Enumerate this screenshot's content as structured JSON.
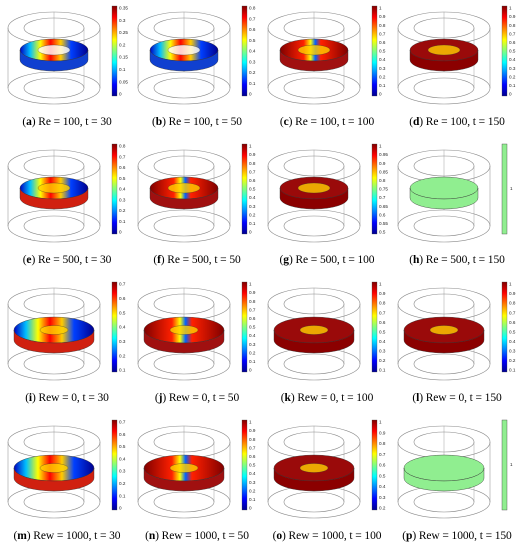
{
  "panels": [
    {
      "id": "a",
      "label": "a",
      "caption": "Re = 100, t = 30",
      "fill": "partial-low",
      "ticks": [
        "0.35",
        "0.3",
        "0.25",
        "0.2",
        "0.15",
        "0.1",
        "0.05",
        "0"
      ]
    },
    {
      "id": "b",
      "label": "b",
      "caption": "Re = 100, t = 50",
      "fill": "partial-low",
      "ticks": [
        "0.8",
        "0.7",
        "0.6",
        "0.5",
        "0.4",
        "0.3",
        "0.2",
        "0.1",
        "0"
      ]
    },
    {
      "id": "c",
      "label": "c",
      "caption": "Re = 100, t = 100",
      "fill": "mostly-high",
      "ticks": [
        "1",
        "0.9",
        "0.8",
        "0.7",
        "0.6",
        "0.5",
        "0.4",
        "0.3",
        "0.2",
        "0.1",
        "0"
      ]
    },
    {
      "id": "d",
      "label": "d",
      "caption": "Re = 100, t = 150",
      "fill": "full-high",
      "ticks": [
        "1",
        "0.9",
        "0.8",
        "0.7",
        "0.6",
        "0.5",
        "0.4",
        "0.3",
        "0.2",
        "0.1",
        "0"
      ]
    },
    {
      "id": "e",
      "label": "e",
      "caption": "Re = 500, t = 30",
      "fill": "partial-mid",
      "ticks": [
        "0.8",
        "0.7",
        "0.6",
        "0.5",
        "0.4",
        "0.3",
        "0.2",
        "0.1",
        "0"
      ]
    },
    {
      "id": "f",
      "label": "f",
      "caption": "Re = 500, t = 50",
      "fill": "mostly-high",
      "ticks": [
        "1",
        "0.9",
        "0.8",
        "0.7",
        "0.6",
        "0.5",
        "0.4",
        "0.3",
        "0.2",
        "0.1",
        "0"
      ]
    },
    {
      "id": "g",
      "label": "g",
      "caption": "Re = 500, t = 100",
      "fill": "full-high",
      "ticks": [
        "1",
        "0.95",
        "0.9",
        "0.85",
        "0.8",
        "0.75",
        "0.7",
        "0.65",
        "0.6",
        "0.55",
        "0.5"
      ]
    },
    {
      "id": "h",
      "label": "h",
      "caption": "Re = 500, t = 150",
      "fill": "uniform-green",
      "ticks": [
        "1"
      ]
    },
    {
      "id": "i",
      "label": "i",
      "caption": "Rew = 0, t = 30",
      "fill": "partial-mid",
      "ticks": [
        "0.7",
        "0.6",
        "0.5",
        "0.4",
        "0.3",
        "0.2",
        "0.1"
      ]
    },
    {
      "id": "j",
      "label": "j",
      "caption": "Rew = 0, t = 50",
      "fill": "mostly-high",
      "ticks": [
        "1",
        "0.9",
        "0.8",
        "0.7",
        "0.6",
        "0.5",
        "0.4",
        "0.3",
        "0.2",
        "0.1",
        "0"
      ]
    },
    {
      "id": "k",
      "label": "k",
      "caption": "Rew = 0, t = 100",
      "fill": "full-high",
      "ticks": [
        "1",
        "0.9",
        "0.8",
        "0.7",
        "0.6",
        "0.5",
        "0.4",
        "0.3",
        "0.2",
        "0.1"
      ]
    },
    {
      "id": "l",
      "label": "l",
      "caption": "Rew = 0, t = 150",
      "fill": "full-high",
      "ticks": [
        "1",
        "0.9",
        "0.8",
        "0.7",
        "0.6",
        "0.5",
        "0.4",
        "0.3",
        "0.2",
        "0.1"
      ]
    },
    {
      "id": "m",
      "label": "m",
      "caption": "Rew = 1000, t = 30",
      "fill": "partial-mid",
      "ticks": [
        "0.7",
        "0.6",
        "0.5",
        "0.4",
        "0.3",
        "0.2",
        "0.1",
        "0"
      ]
    },
    {
      "id": "n",
      "label": "n",
      "caption": "Rew = 1000, t = 50",
      "fill": "mostly-high",
      "ticks": [
        "1",
        "0.9",
        "0.8",
        "0.7",
        "0.6",
        "0.5",
        "0.4",
        "0.3",
        "0.2",
        "0.1",
        "0"
      ]
    },
    {
      "id": "o",
      "label": "o",
      "caption": "Rew = 1000, t = 100",
      "fill": "full-high",
      "ticks": [
        "1",
        "0.9",
        "0.8",
        "0.7",
        "0.6",
        "0.5",
        "0.4",
        "0.3",
        "0.2"
      ]
    },
    {
      "id": "p",
      "label": "p",
      "caption": "Rew = 1000, t = 150",
      "fill": "uniform-green",
      "ticks": [
        "1"
      ]
    }
  ],
  "colors": {
    "jet": [
      "#00008f",
      "#0000ff",
      "#0080ff",
      "#00ffff",
      "#80ff80",
      "#ffff00",
      "#ff8000",
      "#ff0000",
      "#800000"
    ],
    "green": "#90ee90",
    "outline": "#8a8a8a"
  }
}
